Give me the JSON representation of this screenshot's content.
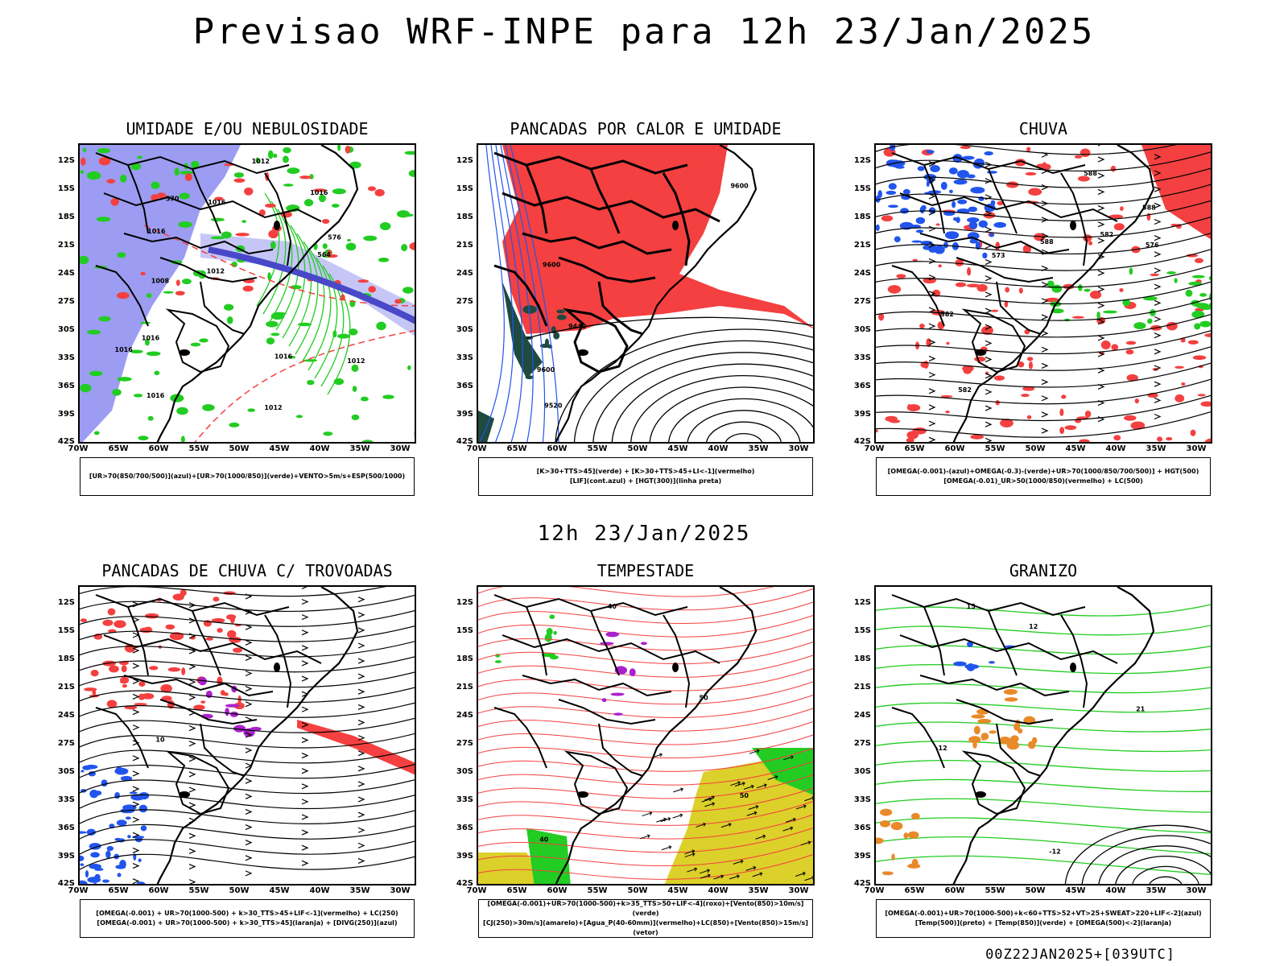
{
  "header": {
    "title": "Previsao WRF-INPE  para 12h 23/Jan/2025"
  },
  "mid_title": "12h 23/Jan/2025",
  "footer": "00Z22JAN2025+[039UTC]",
  "axes": {
    "lat_labels": [
      "12S",
      "15S",
      "18S",
      "21S",
      "24S",
      "27S",
      "30S",
      "33S",
      "36S",
      "39S",
      "42S"
    ],
    "lon_labels": [
      "70W",
      "65W",
      "60W",
      "55W",
      "50W",
      "45W",
      "40W",
      "35W",
      "30W"
    ]
  },
  "colors": {
    "red": "#f44040",
    "green": "#22cc22",
    "blue": "#2255ee",
    "lavender": "#9c9cf2",
    "yellow": "#dcd02a",
    "darkgreen": "#1f4a40",
    "purple": "#aa22cc",
    "orange": "#e88a2a"
  },
  "panels": [
    {
      "title": "UMIDADE E/OU NEBULOSIDADE",
      "legend": [
        "[UR>70(850/700/500)](azul)+[UR>70(1000/850)](verde)+VENTO>5m/s+ESP(500/1000)"
      ],
      "labels": [
        "1016",
        "1016",
        "1016",
        "1016",
        "1012",
        "1012",
        "1012",
        "1012",
        "1008",
        "1016",
        "576",
        "570",
        "564",
        "1016",
        "1016"
      ]
    },
    {
      "title": "PANCADAS POR CALOR E UMIDADE",
      "legend": [
        "[K>30+TTS>45](verde) + [K>30+TTS>45+LI<-1](vermelho)",
        "[LIF](cont.azul) + [HGT(300)](linha preta)"
      ],
      "labels": [
        "9600",
        "9600",
        "9600",
        "9520",
        "9440"
      ]
    },
    {
      "title": "CHUVA",
      "legend": [
        "[OMEGA(-0.001)-(azul)+OMEGA(-0.3)-(verde)+UR>70(1000/850/700/500)] + HGT(500)",
        "[OMEGA(-0.01)_UR>50(1000/850)(vermelho) + LC(500)"
      ],
      "labels": [
        "588",
        "588",
        "582",
        "582",
        "576",
        "582",
        "588",
        "573"
      ]
    },
    {
      "title": "PANCADAS DE CHUVA C/ TROVOADAS",
      "legend": [
        "[OMEGA(-0.001) + UR>70(1000-500) + k>30_TTS>45+LIF<-1](vermelho) + LC(250)",
        "[OMEGA(-0.001) + UR>70(1000-500) + k>30_TTS>45](laranja) + [DIVG(250)](azul)"
      ],
      "labels": [
        "10"
      ]
    },
    {
      "title": "TEMPESTADE",
      "legend": [
        "[OMEGA(-0.001)+UR>70(1000-500)+k>35_TTS>50+LIF<-4](roxo)+[Vento(850)>10m/s](verde)",
        "[CJ(250)>30m/s](amarelo)+[Agua_P(40-60mm)](vermelho)+LC(850)+[Vento(850)>15m/s](vetor)"
      ],
      "labels": [
        "50",
        "50",
        "40",
        "40"
      ]
    },
    {
      "title": "GRANIZO",
      "legend": [
        "[OMEGA(-0.001)+UR>70(1000-500)+k<60+TTS>52+VT>25+SWEAT>220+LIF<-2](azul)",
        "[Temp(500)](preto) + [Temp(850)](verde) + [OMEGA(500)<-2](laranja)"
      ],
      "labels": [
        "-12",
        "15",
        "12",
        "-12",
        "21"
      ]
    }
  ]
}
